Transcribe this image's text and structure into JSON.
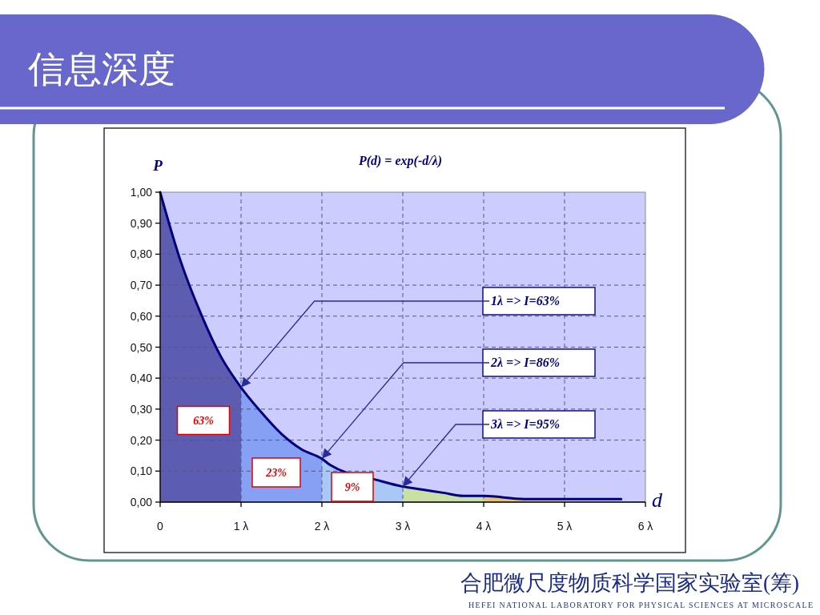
{
  "chart_data": {
    "type": "area",
    "title": "信息深度",
    "subtitle": "P(d) = exp(-d/λ)",
    "xlabel": "d",
    "ylabel": "P",
    "xlim": [
      0,
      6
    ],
    "xticks": [
      0,
      {
        "value": 1,
        "label": "1 λ"
      },
      {
        "value": 2,
        "label": "2 λ"
      },
      {
        "value": 3,
        "label": "3 λ"
      },
      {
        "value": 4,
        "label": "4 λ"
      },
      {
        "value": 5,
        "label": "5 λ"
      },
      {
        "value": 6,
        "label": "6 λ"
      }
    ],
    "ylim": [
      0,
      1
    ],
    "yticks": [
      {
        "value": 0,
        "label": "0,00"
      },
      {
        "value": 0.1,
        "label": "0,10"
      },
      {
        "value": 0.2,
        "label": "0,20"
      },
      {
        "value": 0.3,
        "label": "0,30"
      },
      {
        "value": 0.4,
        "label": "0,40"
      },
      {
        "value": 0.5,
        "label": "0,50"
      },
      {
        "value": 0.6,
        "label": "0,60"
      },
      {
        "value": 0.7,
        "label": "0,70"
      },
      {
        "value": 0.8,
        "label": "0,80"
      },
      {
        "value": 0.9,
        "label": "0,90"
      },
      {
        "value": 1,
        "label": "1,00"
      }
    ],
    "grid": true,
    "series": [
      {
        "color": "#5c5cb0",
        "x": [
          0,
          0.25,
          0.5,
          0.75,
          1
        ],
        "values": [
          1.0,
          0.78,
          0.61,
          0.47,
          0.37
        ]
      },
      {
        "color": "#86a0f4",
        "x": [
          1,
          1.25,
          1.5,
          1.75,
          2
        ],
        "values": [
          0.37,
          0.29,
          0.22,
          0.17,
          0.14
        ]
      },
      {
        "color": "#aac8f6",
        "x": [
          2,
          2.1,
          2.7,
          3
        ],
        "values": [
          0.14,
          0.12,
          0.07,
          0.05
        ]
      },
      {
        "color": "#c8e0a4",
        "x": [
          3,
          3.25,
          3.5,
          3.75,
          4
        ],
        "values": [
          0.05,
          0.04,
          0.03,
          0.02,
          0.02
        ]
      },
      {
        "color": "#e6c46a",
        "x": [
          4,
          4.5,
          5
        ],
        "values": [
          0.02,
          0.01,
          0.01
        ]
      },
      {
        "type": "line",
        "color": "#000080",
        "x": [
          0,
          0.25,
          0.5,
          0.75,
          1,
          1.25,
          1.5,
          1.75,
          2,
          2.1,
          2.7,
          3,
          3.25,
          3.5,
          3.75,
          4,
          4.5,
          5,
          5.5,
          5.7
        ],
        "values": [
          1.0,
          0.78,
          0.61,
          0.47,
          0.37,
          0.29,
          0.22,
          0.17,
          0.14,
          0.12,
          0.07,
          0.05,
          0.04,
          0.03,
          0.02,
          0.02,
          0.01,
          0.01,
          0.01,
          0.01
        ]
      }
    ],
    "annotations": [
      {
        "text": "1λ => I=63%",
        "x": 1,
        "y": 0.37
      },
      {
        "text": "2λ => I=86%",
        "x": 2,
        "y": 0.14
      },
      {
        "text": "3λ => I=95%",
        "x": 3,
        "y": 0.05
      },
      "63%",
      "23%",
      "9%",
      "合肥微尺度物质科学国家实验室(筹)",
      "HEFEI NATIONAL LABORATORY FOR PHYSICAL SCIENCES AT MICROSCALE"
    ]
  }
}
